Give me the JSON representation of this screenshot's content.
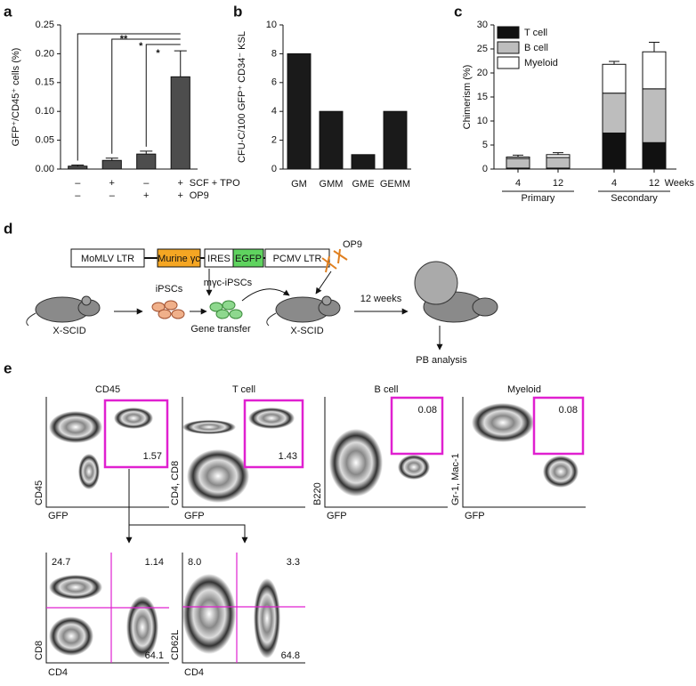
{
  "chart_data": [
    {
      "type": "bar",
      "panel": "a",
      "ylabel": "GFP⁺/CD45⁺ cells (%)",
      "values": [
        0.005,
        0.015,
        0.026,
        0.16
      ],
      "errors": [
        0.002,
        0.004,
        0.005,
        0.045
      ],
      "color": "#4d4d4d",
      "ylim": [
        0,
        0.25
      ],
      "yticks": [
        {
          "value": 0,
          "label": "0.00"
        },
        {
          "value": 0.05,
          "label": "0.05"
        },
        {
          "value": 0.1,
          "label": "0.10"
        },
        {
          "value": 0.15,
          "label": "0.15"
        },
        {
          "value": 0.2,
          "label": "0.20"
        },
        {
          "value": 0.25,
          "label": "0.25"
        }
      ],
      "condition_rows": [
        {
          "label": "SCF + TPO",
          "values": [
            "–",
            "+",
            "–",
            "+"
          ]
        },
        {
          "label": "OP9",
          "values": [
            "–",
            "–",
            "+",
            "+"
          ]
        }
      ],
      "annotations": [
        "**",
        "*",
        "*"
      ]
    },
    {
      "type": "bar",
      "panel": "b",
      "ylabel": "CFU-C/100 GFP⁺ CD34⁻ KSL",
      "categories": [
        "GM",
        "GMM",
        "GME",
        "GEMM"
      ],
      "values": [
        8,
        4,
        1,
        4
      ],
      "color": "#1a1a1a",
      "ylim": [
        0,
        10
      ],
      "yticks": [
        0,
        2,
        4,
        6,
        8,
        10
      ]
    },
    {
      "type": "bar",
      "panel": "c",
      "ylabel": "Chimerism (%)",
      "xlabel": "Weeks",
      "groups": [
        {
          "name": "Primary",
          "categories": [
            "4",
            "12"
          ]
        },
        {
          "name": "Secondary",
          "categories": [
            "4",
            "12"
          ]
        }
      ],
      "series": [
        {
          "name": "T cell",
          "color": "#111111",
          "values": [
            0.2,
            0.2,
            7.5,
            5.5
          ]
        },
        {
          "name": "B cell",
          "color": "#bdbdbd",
          "values": [
            2.0,
            2.2,
            8.3,
            11.2
          ]
        },
        {
          "name": "Myeloid",
          "color": "#ffffff",
          "values": [
            0.3,
            0.6,
            6.0,
            7.7
          ]
        }
      ],
      "errors": [
        0.4,
        0.4,
        0.6,
        2.0
      ],
      "ylim": [
        0,
        30
      ],
      "yticks": [
        0,
        5,
        10,
        15,
        20,
        25,
        30
      ],
      "legend": "upper left"
    }
  ],
  "scheme": {
    "panel": "d",
    "construct": [
      "MoMLV LTR",
      "Murine γc",
      "IRES",
      "EGFP",
      "PCMV LTR"
    ],
    "labels": {
      "feeder": "OP9",
      "cells": "iPSCs",
      "modified_cells": "mγc-iPSCs",
      "donor": "X-SCID",
      "step": "Gene transfer",
      "recipient": "X-SCID",
      "time": "12 weeks",
      "readout": "PB analysis"
    }
  },
  "flow": {
    "panel": "e",
    "gate_plots": [
      {
        "title": "CD45",
        "gate": "1.57",
        "xlabel": "GFP",
        "ylabel": "CD45"
      },
      {
        "title": "T cell",
        "gate": "1.43",
        "xlabel": "GFP",
        "ylabel": "CD4, CD8"
      },
      {
        "title": "B cell",
        "gate": "0.08",
        "xlabel": "GFP",
        "ylabel": "B220"
      },
      {
        "title": "Myeloid",
        "gate": "0.08",
        "xlabel": "GFP",
        "ylabel": "Gr-1, Mac-1"
      }
    ],
    "quadrant_plots": [
      {
        "quadrants": [
          "24.7",
          "1.14",
          "64.1"
        ],
        "xlabel": "CD4",
        "ylabel": "CD8"
      },
      {
        "quadrants": [
          "8.0",
          "3.3",
          "64.8"
        ],
        "xlabel": "CD4",
        "ylabel": "CD62L"
      }
    ]
  }
}
